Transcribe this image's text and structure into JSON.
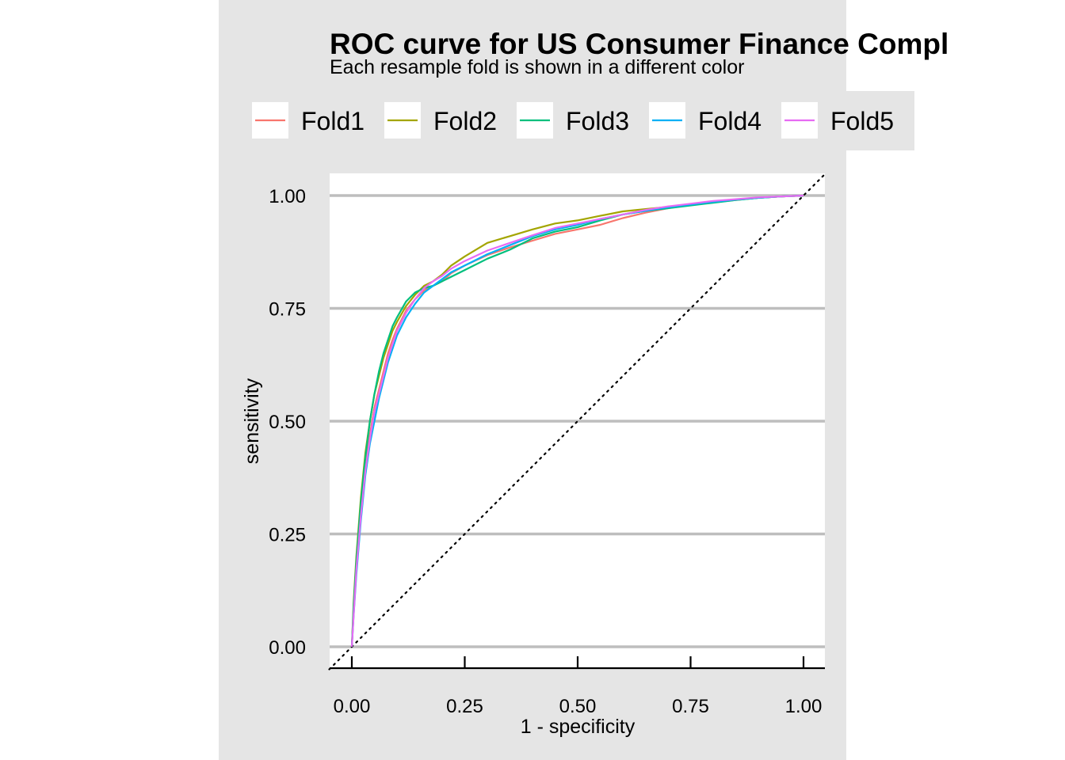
{
  "chart_data": {
    "type": "line",
    "title": "ROC curve for US Consumer Finance Compl",
    "subtitle": "Each resample fold is shown in a different color",
    "xlabel": "1 - specificity",
    "ylabel": "sensitivity",
    "xlim": [
      0,
      1
    ],
    "ylim": [
      0,
      1
    ],
    "x_ticks": [
      "0.00",
      "0.25",
      "0.50",
      "0.75",
      "1.00"
    ],
    "y_ticks": [
      "0.00",
      "0.25",
      "0.50",
      "0.75",
      "1.00"
    ],
    "grid": "horizontal",
    "legend_position": "top",
    "reference_line": {
      "style": "dotted",
      "from": [
        0,
        0
      ],
      "to": [
        1,
        1
      ]
    },
    "series": [
      {
        "name": "Fold1",
        "color": "#F8766D",
        "points": [
          [
            0,
            0
          ],
          [
            0.004,
            0.08
          ],
          [
            0.01,
            0.18
          ],
          [
            0.02,
            0.3
          ],
          [
            0.03,
            0.4
          ],
          [
            0.04,
            0.47
          ],
          [
            0.05,
            0.53
          ],
          [
            0.06,
            0.57
          ],
          [
            0.07,
            0.61
          ],
          [
            0.08,
            0.65
          ],
          [
            0.09,
            0.68
          ],
          [
            0.1,
            0.705
          ],
          [
            0.12,
            0.745
          ],
          [
            0.14,
            0.77
          ],
          [
            0.16,
            0.79
          ],
          [
            0.18,
            0.8
          ],
          [
            0.2,
            0.81
          ],
          [
            0.22,
            0.828
          ],
          [
            0.25,
            0.845
          ],
          [
            0.3,
            0.868
          ],
          [
            0.35,
            0.885
          ],
          [
            0.4,
            0.9
          ],
          [
            0.45,
            0.915
          ],
          [
            0.5,
            0.925
          ],
          [
            0.55,
            0.935
          ],
          [
            0.6,
            0.95
          ],
          [
            0.65,
            0.962
          ],
          [
            0.7,
            0.972
          ],
          [
            0.75,
            0.98
          ],
          [
            0.8,
            0.986
          ],
          [
            0.85,
            0.991
          ],
          [
            0.9,
            0.995
          ],
          [
            0.95,
            0.998
          ],
          [
            1,
            1
          ]
        ]
      },
      {
        "name": "Fold2",
        "color": "#A3A500",
        "points": [
          [
            0,
            0
          ],
          [
            0.004,
            0.1
          ],
          [
            0.01,
            0.2
          ],
          [
            0.02,
            0.33
          ],
          [
            0.03,
            0.43
          ],
          [
            0.04,
            0.5
          ],
          [
            0.05,
            0.56
          ],
          [
            0.06,
            0.6
          ],
          [
            0.07,
            0.64
          ],
          [
            0.08,
            0.67
          ],
          [
            0.09,
            0.7
          ],
          [
            0.1,
            0.72
          ],
          [
            0.12,
            0.755
          ],
          [
            0.14,
            0.78
          ],
          [
            0.16,
            0.8
          ],
          [
            0.18,
            0.81
          ],
          [
            0.2,
            0.825
          ],
          [
            0.22,
            0.845
          ],
          [
            0.25,
            0.865
          ],
          [
            0.3,
            0.895
          ],
          [
            0.35,
            0.91
          ],
          [
            0.4,
            0.925
          ],
          [
            0.45,
            0.938
          ],
          [
            0.5,
            0.945
          ],
          [
            0.55,
            0.955
          ],
          [
            0.6,
            0.965
          ],
          [
            0.65,
            0.97
          ],
          [
            0.7,
            0.975
          ],
          [
            0.75,
            0.98
          ],
          [
            0.8,
            0.985
          ],
          [
            0.85,
            0.99
          ],
          [
            0.9,
            0.995
          ],
          [
            0.95,
            0.998
          ],
          [
            1,
            1
          ]
        ]
      },
      {
        "name": "Fold3",
        "color": "#00BF7D",
        "points": [
          [
            0,
            0
          ],
          [
            0.004,
            0.09
          ],
          [
            0.01,
            0.19
          ],
          [
            0.02,
            0.32
          ],
          [
            0.03,
            0.42
          ],
          [
            0.04,
            0.5
          ],
          [
            0.05,
            0.56
          ],
          [
            0.06,
            0.61
          ],
          [
            0.07,
            0.65
          ],
          [
            0.08,
            0.68
          ],
          [
            0.09,
            0.71
          ],
          [
            0.1,
            0.73
          ],
          [
            0.12,
            0.765
          ],
          [
            0.14,
            0.785
          ],
          [
            0.16,
            0.795
          ],
          [
            0.18,
            0.8
          ],
          [
            0.2,
            0.81
          ],
          [
            0.22,
            0.82
          ],
          [
            0.25,
            0.835
          ],
          [
            0.3,
            0.86
          ],
          [
            0.35,
            0.88
          ],
          [
            0.4,
            0.905
          ],
          [
            0.45,
            0.92
          ],
          [
            0.5,
            0.93
          ],
          [
            0.55,
            0.945
          ],
          [
            0.6,
            0.958
          ],
          [
            0.65,
            0.966
          ],
          [
            0.7,
            0.972
          ],
          [
            0.75,
            0.978
          ],
          [
            0.8,
            0.984
          ],
          [
            0.85,
            0.99
          ],
          [
            0.9,
            0.995
          ],
          [
            0.95,
            0.998
          ],
          [
            1,
            1
          ]
        ]
      },
      {
        "name": "Fold4",
        "color": "#00B0F6",
        "points": [
          [
            0,
            0
          ],
          [
            0.004,
            0.07
          ],
          [
            0.01,
            0.16
          ],
          [
            0.02,
            0.28
          ],
          [
            0.03,
            0.38
          ],
          [
            0.04,
            0.45
          ],
          [
            0.05,
            0.5
          ],
          [
            0.06,
            0.55
          ],
          [
            0.07,
            0.59
          ],
          [
            0.08,
            0.63
          ],
          [
            0.09,
            0.66
          ],
          [
            0.1,
            0.69
          ],
          [
            0.12,
            0.73
          ],
          [
            0.14,
            0.76
          ],
          [
            0.16,
            0.785
          ],
          [
            0.18,
            0.8
          ],
          [
            0.2,
            0.815
          ],
          [
            0.22,
            0.83
          ],
          [
            0.25,
            0.845
          ],
          [
            0.3,
            0.87
          ],
          [
            0.35,
            0.89
          ],
          [
            0.4,
            0.91
          ],
          [
            0.45,
            0.925
          ],
          [
            0.5,
            0.935
          ],
          [
            0.55,
            0.948
          ],
          [
            0.6,
            0.958
          ],
          [
            0.65,
            0.966
          ],
          [
            0.7,
            0.974
          ],
          [
            0.75,
            0.98
          ],
          [
            0.8,
            0.986
          ],
          [
            0.85,
            0.991
          ],
          [
            0.9,
            0.995
          ],
          [
            0.95,
            0.998
          ],
          [
            1,
            1
          ]
        ]
      },
      {
        "name": "Fold5",
        "color": "#E76BF3",
        "points": [
          [
            0,
            0
          ],
          [
            0.004,
            0.07
          ],
          [
            0.01,
            0.17
          ],
          [
            0.02,
            0.29
          ],
          [
            0.03,
            0.39
          ],
          [
            0.04,
            0.46
          ],
          [
            0.05,
            0.52
          ],
          [
            0.06,
            0.56
          ],
          [
            0.07,
            0.6
          ],
          [
            0.08,
            0.64
          ],
          [
            0.09,
            0.67
          ],
          [
            0.1,
            0.7
          ],
          [
            0.12,
            0.74
          ],
          [
            0.14,
            0.77
          ],
          [
            0.16,
            0.795
          ],
          [
            0.18,
            0.81
          ],
          [
            0.2,
            0.822
          ],
          [
            0.22,
            0.838
          ],
          [
            0.25,
            0.855
          ],
          [
            0.3,
            0.878
          ],
          [
            0.35,
            0.895
          ],
          [
            0.4,
            0.912
          ],
          [
            0.45,
            0.928
          ],
          [
            0.5,
            0.938
          ],
          [
            0.55,
            0.948
          ],
          [
            0.6,
            0.958
          ],
          [
            0.65,
            0.968
          ],
          [
            0.7,
            0.976
          ],
          [
            0.75,
            0.982
          ],
          [
            0.8,
            0.988
          ],
          [
            0.85,
            0.992
          ],
          [
            0.9,
            0.996
          ],
          [
            0.95,
            0.998
          ],
          [
            1,
            1
          ]
        ]
      }
    ]
  }
}
